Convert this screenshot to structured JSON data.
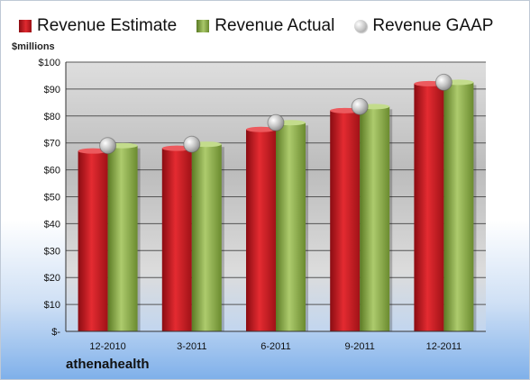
{
  "legend": {
    "estimate": "Revenue Estimate",
    "actual": "Revenue Actual",
    "gaap": "Revenue GAAP"
  },
  "unit_label": "$millions",
  "company": "athenahealth",
  "colors": {
    "estimate": "#c81e24",
    "actual": "#8fb04e",
    "gaap": "#c0c0c0"
  },
  "chart_data": {
    "type": "bar",
    "categories": [
      "12-2010",
      "3-2011",
      "6-2011",
      "9-2011",
      "12-2011"
    ],
    "series": [
      {
        "name": "Revenue Estimate",
        "type": "bar",
        "values": [
          67,
          68,
          75,
          82,
          92
        ]
      },
      {
        "name": "Revenue Actual",
        "type": "bar",
        "values": [
          69,
          69.5,
          77.5,
          83.5,
          92.5
        ]
      },
      {
        "name": "Revenue GAAP",
        "type": "scatter",
        "values": [
          69,
          69.5,
          77.5,
          83.5,
          92.5
        ]
      }
    ],
    "ylabel": "$millions",
    "ylim": [
      0,
      100
    ],
    "yticks": [
      0,
      10,
      20,
      30,
      40,
      50,
      60,
      70,
      80,
      90,
      100
    ],
    "ytick_labels": [
      "$-",
      "$10",
      "$20",
      "$30",
      "$40",
      "$50",
      "$60",
      "$70",
      "$80",
      "$90",
      "$100"
    ],
    "grid": true,
    "legend_position": "top"
  }
}
